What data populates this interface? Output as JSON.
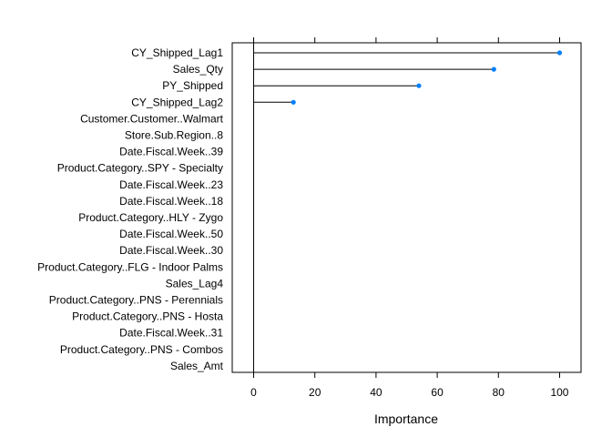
{
  "chart_data": {
    "type": "dotplot",
    "title": "",
    "xlabel": "Importance",
    "ylabel": "",
    "xlim": [
      -7,
      107
    ],
    "xticks": [
      0,
      20,
      40,
      60,
      80,
      100
    ],
    "grid": false,
    "legend": "none",
    "point_color": "#0080FF",
    "categories": [
      "CY_Shipped_Lag1",
      "Sales_Qty",
      "PY_Shipped",
      "CY_Shipped_Lag2",
      "Customer.Customer..Walmart",
      "Store.Sub.Region..8",
      "Date.Fiscal.Week..39",
      "Product.Category..SPY - Specialty",
      "Date.Fiscal.Week..23",
      "Date.Fiscal.Week..18",
      "Product.Category..HLY - Zygo",
      "Date.Fiscal.Week..50",
      "Date.Fiscal.Week..30",
      "Product.Category..FLG - Indoor Palms",
      "Sales_Lag4",
      "Product.Category..PNS - Perennials",
      "Product.Category..PNS - Hosta",
      "Date.Fiscal.Week..31",
      "Product.Category..PNS - Combos",
      "Sales_Amt"
    ],
    "values": [
      100,
      78.5,
      54,
      13,
      0,
      0,
      0,
      0,
      0,
      0,
      0,
      0,
      0,
      0,
      0,
      0,
      0,
      0,
      0,
      0
    ]
  }
}
